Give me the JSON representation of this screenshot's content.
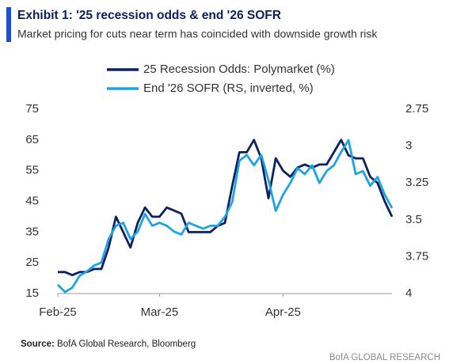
{
  "chart_data": {
    "type": "line",
    "title": "Exhibit 1: '25 recession odds & end '26 SOFR",
    "subtitle": "Market pricing for cuts near term has coincided with downside growth risk",
    "source_label": "Source:",
    "source": "BofA Global Research, Bloomberg",
    "footer": "BofA GLOBAL RESEARCH",
    "categories": [
      "Feb-25",
      null,
      null,
      null,
      null,
      null,
      null,
      null,
      null,
      null,
      null,
      null,
      null,
      null,
      "Mar-25",
      null,
      null,
      null,
      null,
      null,
      null,
      null,
      null,
      null,
      null,
      null,
      null,
      null,
      null,
      null,
      null,
      "Apr-25",
      null,
      null,
      null,
      null,
      null,
      null,
      null,
      null,
      null,
      null,
      null,
      null,
      null,
      null,
      null
    ],
    "ylim": [
      15,
      75
    ],
    "yticks": [
      15,
      25,
      35,
      45,
      55,
      65,
      75
    ],
    "y2lim": [
      4,
      2.75
    ],
    "y2ticks": [
      4,
      3.75,
      3.5,
      3.25,
      3,
      2.75
    ],
    "grid": false,
    "legend": "top",
    "series": [
      {
        "name": "25 Recession Odds: Polymarket (%)",
        "color": "#0c2160",
        "values": [
          22,
          22,
          21,
          22,
          22,
          23,
          23,
          30,
          40,
          35,
          30,
          38,
          43,
          40,
          40,
          43,
          42,
          41,
          35,
          35,
          35,
          35,
          37,
          38,
          50,
          61,
          61,
          65,
          59,
          46,
          59,
          55,
          53,
          56,
          57,
          56,
          57,
          57,
          61,
          65,
          60,
          59,
          59,
          53,
          51,
          45,
          40
        ]
      },
      {
        "name": "End '26 SOFR (RS, inverted, %)",
        "color": "#1fa3e3",
        "axis": "y2",
        "values": [
          3.94,
          3.99,
          3.96,
          3.88,
          3.85,
          3.81,
          3.79,
          3.63,
          3.54,
          3.52,
          3.63,
          3.58,
          3.46,
          3.54,
          3.52,
          3.54,
          3.58,
          3.6,
          3.52,
          3.54,
          3.56,
          3.54,
          3.54,
          3.48,
          3.38,
          3.1,
          3.06,
          3.13,
          3.06,
          3.23,
          3.44,
          3.33,
          3.25,
          3.15,
          3.19,
          3.13,
          3.25,
          3.17,
          3.13,
          3.04,
          2.96,
          3.19,
          3.17,
          3.27,
          3.21,
          3.33,
          3.42
        ]
      }
    ]
  }
}
